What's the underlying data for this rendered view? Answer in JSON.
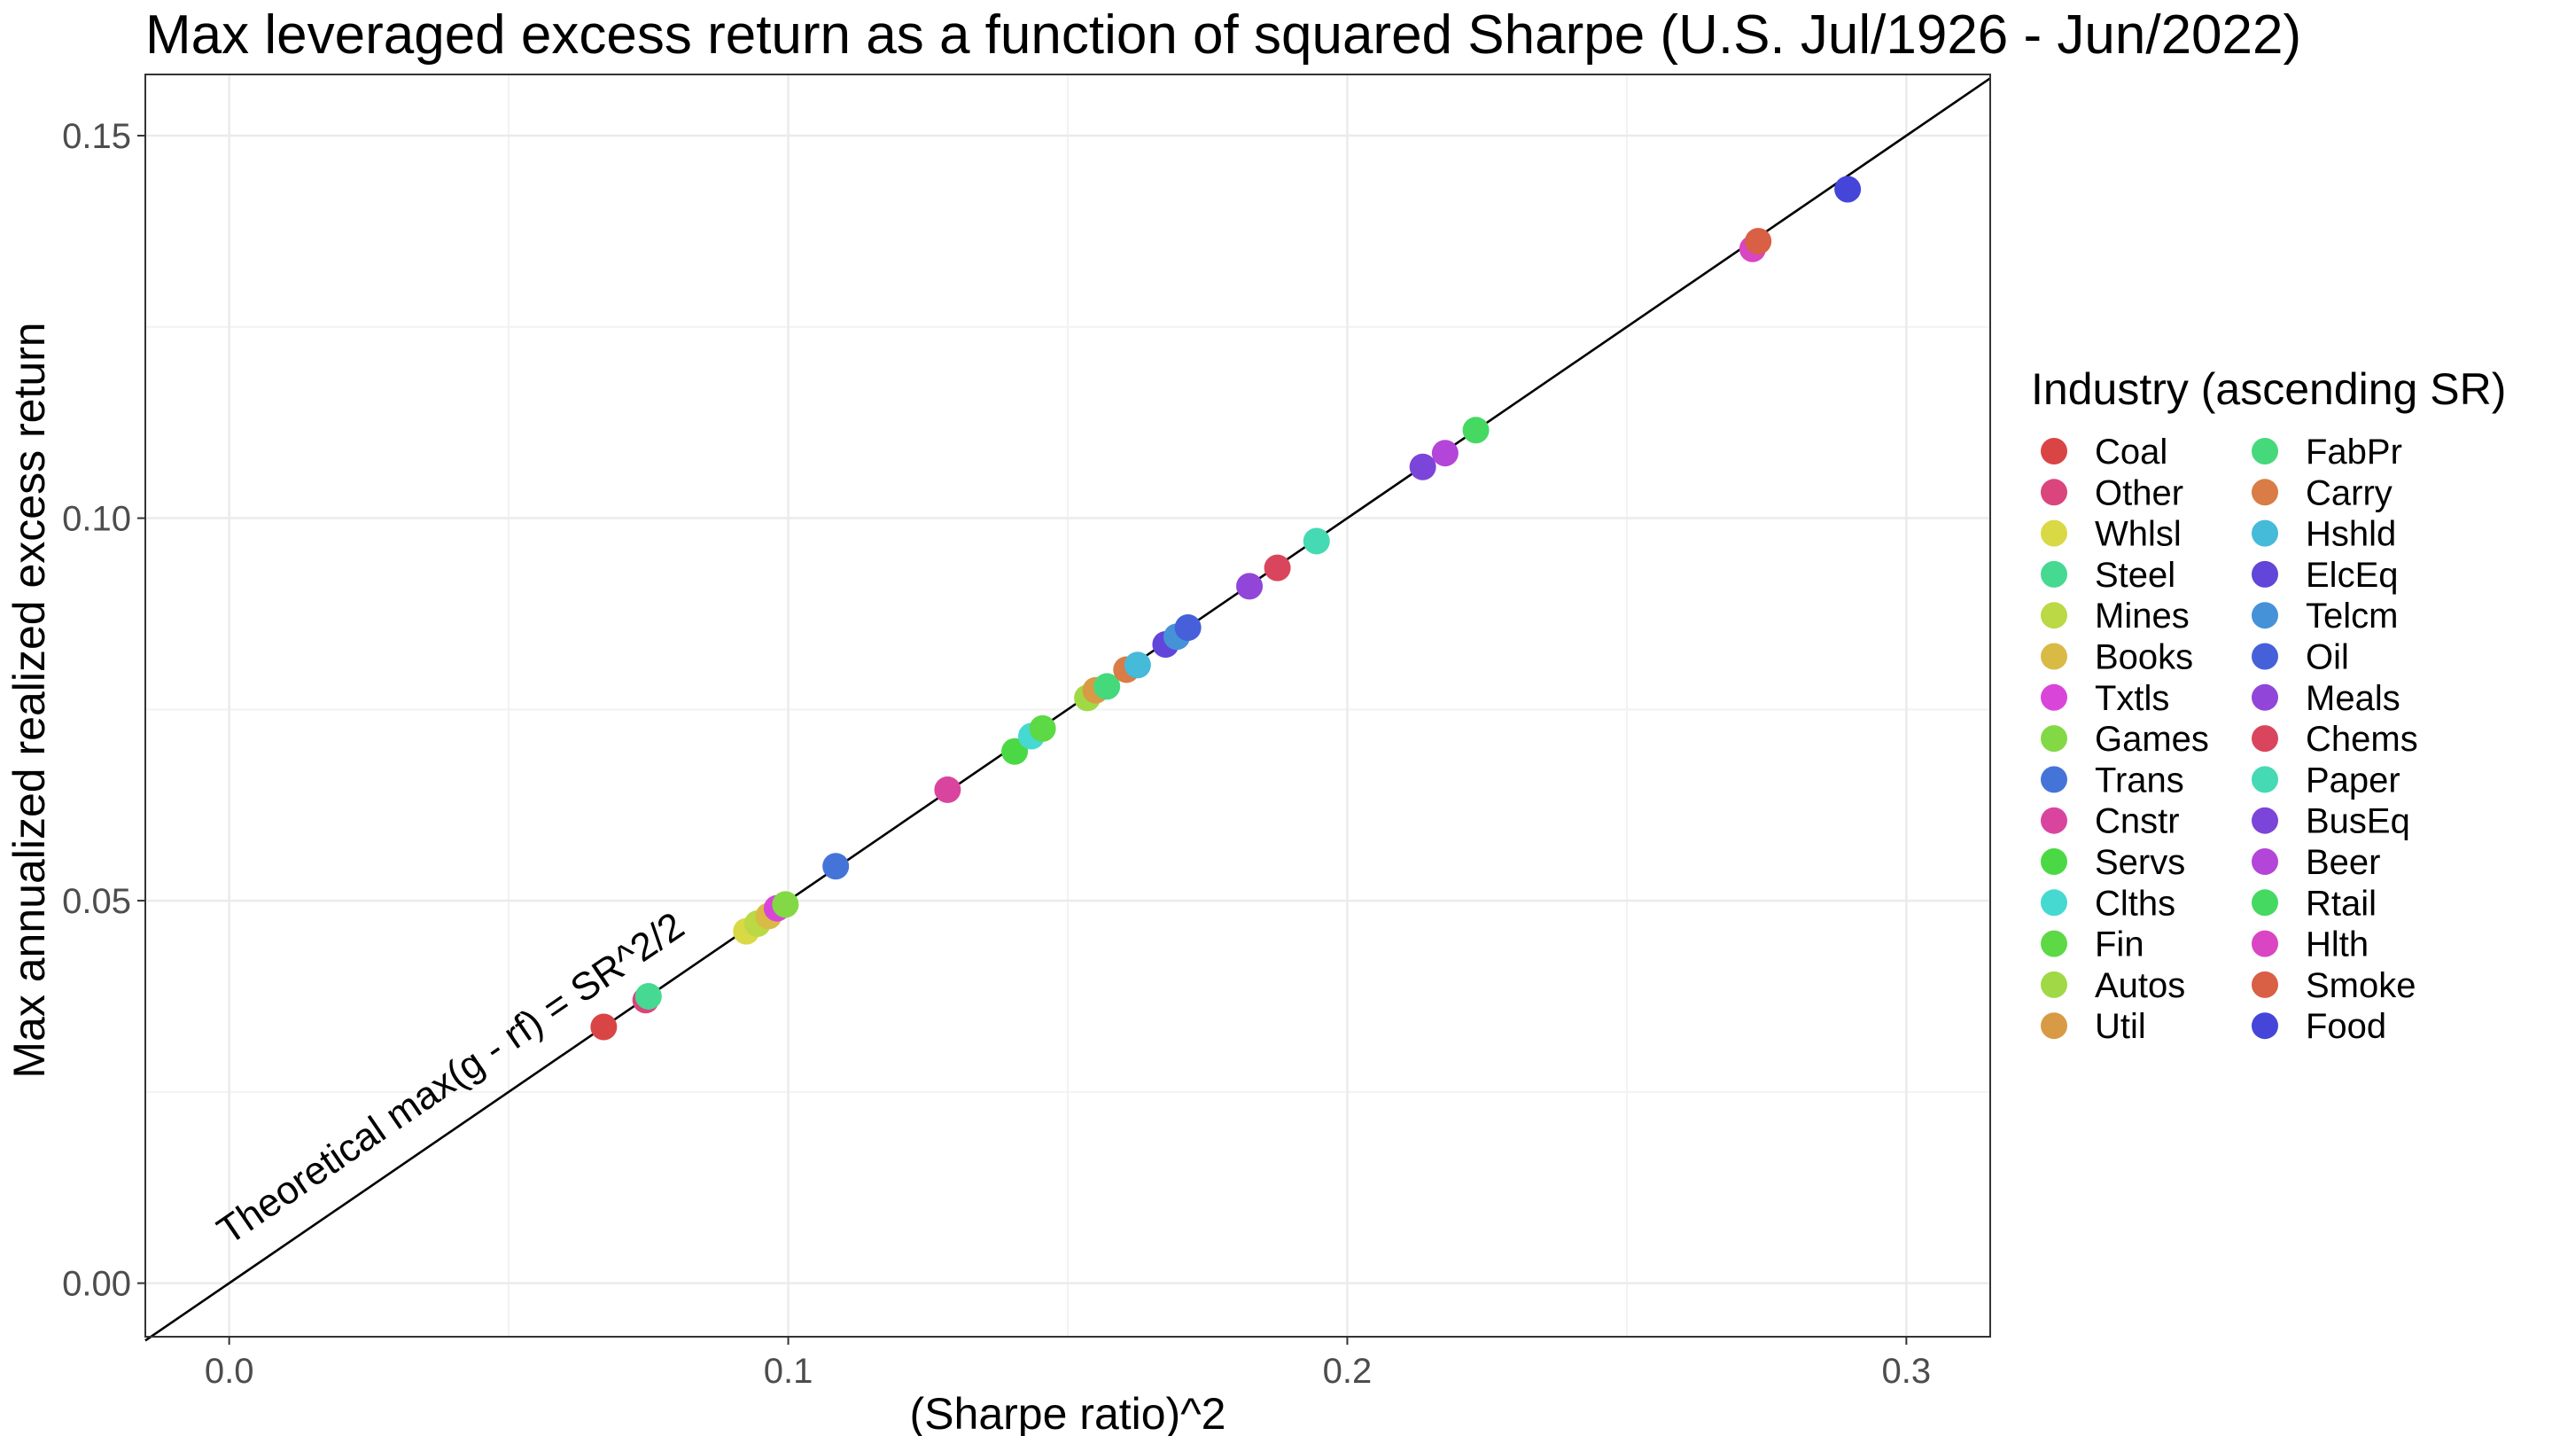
{
  "chart_data": {
    "type": "scatter",
    "title": "Max leveraged excess return as a function of squared Sharpe (U.S. Jul/1926 - Jun/2022)",
    "xlabel": "(Sharpe ratio)^2",
    "ylabel": "Max annualized realized excess return",
    "xlim": [
      -0.015,
      0.315
    ],
    "ylim": [
      -0.007,
      0.158
    ],
    "x_ticks": [
      0.0,
      0.1,
      0.2,
      0.3
    ],
    "x_tick_labels": [
      "0.0",
      "0.1",
      "0.2",
      "0.3"
    ],
    "y_ticks": [
      0.0,
      0.05,
      0.1,
      0.15
    ],
    "y_tick_labels": [
      "0.00",
      "0.05",
      "0.10",
      "0.15"
    ],
    "grid": true,
    "reference_line": {
      "slope": 0.5,
      "intercept": 0,
      "color": "#000000",
      "label": "Theoretical max(g - rf) = SR^2/2"
    },
    "legend": {
      "title": "Industry (ascending SR)",
      "placement": "right",
      "columns": 2
    },
    "series": [
      {
        "name": "Coal",
        "color": "#D94545",
        "x": 0.067,
        "y": 0.0335
      },
      {
        "name": "Other",
        "color": "#D9457C",
        "x": 0.0745,
        "y": 0.037
      },
      {
        "name": "Whlsl",
        "color": "#D9D945",
        "x": 0.0925,
        "y": 0.046
      },
      {
        "name": "Steel",
        "color": "#45D992",
        "x": 0.075,
        "y": 0.0375
      },
      {
        "name": "Mines",
        "color": "#BAD945",
        "x": 0.0945,
        "y": 0.047
      },
      {
        "name": "Books",
        "color": "#D9BA45",
        "x": 0.0965,
        "y": 0.048
      },
      {
        "name": "Txtls",
        "color": "#D945D9",
        "x": 0.098,
        "y": 0.049
      },
      {
        "name": "Games",
        "color": "#82D945",
        "x": 0.0995,
        "y": 0.0495
      },
      {
        "name": "Trans",
        "color": "#4574D9",
        "x": 0.1085,
        "y": 0.0545
      },
      {
        "name": "Cnstr",
        "color": "#D9459E",
        "x": 0.1285,
        "y": 0.0645
      },
      {
        "name": "Servs",
        "color": "#4AD945",
        "x": 0.1405,
        "y": 0.0695
      },
      {
        "name": "Clths",
        "color": "#45D9D2",
        "x": 0.1435,
        "y": 0.0715
      },
      {
        "name": "Fin",
        "color": "#5CD945",
        "x": 0.1455,
        "y": 0.0725
      },
      {
        "name": "Autos",
        "color": "#A0D945",
        "x": 0.1535,
        "y": 0.0765
      },
      {
        "name": "Util",
        "color": "#D99A45",
        "x": 0.155,
        "y": 0.0775
      },
      {
        "name": "FabPr",
        "color": "#45D97C",
        "x": 0.157,
        "y": 0.078
      },
      {
        "name": "Carry",
        "color": "#D97C45",
        "x": 0.1605,
        "y": 0.0802
      },
      {
        "name": "Hshld",
        "color": "#45BAD9",
        "x": 0.1625,
        "y": 0.0808
      },
      {
        "name": "ElcEq",
        "color": "#6245D9",
        "x": 0.1675,
        "y": 0.0835
      },
      {
        "name": "Telcm",
        "color": "#4592D9",
        "x": 0.1695,
        "y": 0.0845
      },
      {
        "name": "Oil",
        "color": "#4560D9",
        "x": 0.1715,
        "y": 0.0857
      },
      {
        "name": "Meals",
        "color": "#9245D9",
        "x": 0.1825,
        "y": 0.0911
      },
      {
        "name": "Chems",
        "color": "#D9455C",
        "x": 0.1875,
        "y": 0.0935
      },
      {
        "name": "Paper",
        "color": "#45D9B4",
        "x": 0.1945,
        "y": 0.097
      },
      {
        "name": "BusEq",
        "color": "#7C45D9",
        "x": 0.2135,
        "y": 0.1067
      },
      {
        "name": "Beer",
        "color": "#B445D9",
        "x": 0.2175,
        "y": 0.1085
      },
      {
        "name": "Rtail",
        "color": "#45D962",
        "x": 0.223,
        "y": 0.1115
      },
      {
        "name": "Hlth",
        "color": "#D945C2",
        "x": 0.2725,
        "y": 0.1352
      },
      {
        "name": "Smoke",
        "color": "#D95F45",
        "x": 0.2735,
        "y": 0.1362
      },
      {
        "name": "Food",
        "color": "#4545D9",
        "x": 0.2895,
        "y": 0.143
      }
    ]
  }
}
